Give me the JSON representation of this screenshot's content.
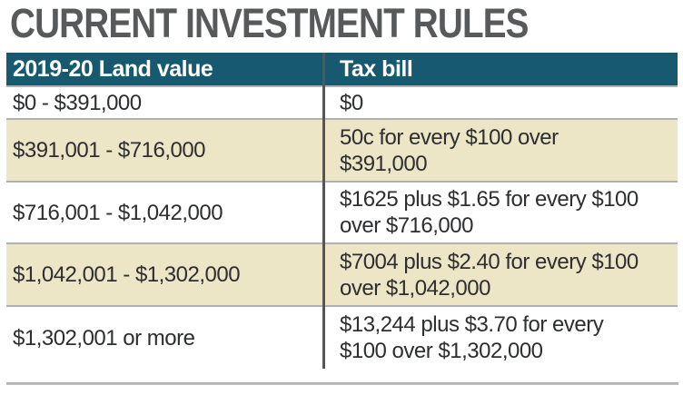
{
  "title": "CURRENT INVESTMENT RULES",
  "table": {
    "headers": {
      "land_value": "2019-20 Land value",
      "tax_bill": "Tax bill"
    },
    "rows": [
      {
        "land_value": "$0 - $391,000",
        "tax_bill": "$0"
      },
      {
        "land_value": "$391,001 - $716,000",
        "tax_bill": "50c for every $100 over\n$391,000"
      },
      {
        "land_value": "$716,001 - $1,042,000",
        "tax_bill": "$1625 plus $1.65 for every $100\nover $716,000"
      },
      {
        "land_value": "$1,042,001 - $1,302,000",
        "tax_bill": "$7004 plus $2.40 for every $100\nover $1,042,000"
      },
      {
        "land_value": "$1,302,001 or more",
        "tax_bill": "$13,244 plus $3.70 for every\n$100 over $1,302,000"
      }
    ]
  },
  "chart_data": {
    "type": "table",
    "title": "CURRENT INVESTMENT RULES",
    "columns": [
      "2019-20 Land value",
      "Tax bill"
    ],
    "rows": [
      [
        "$0 - $391,000",
        "$0"
      ],
      [
        "$391,001 - $716,000",
        "50c for every $100 over $391,000"
      ],
      [
        "$716,001 - $1,042,000",
        "$1625 plus $1.65 for every $100 over $716,000"
      ],
      [
        "$1,042,001 - $1,302,000",
        "$7004 plus $2.40 for every $100 over $1,042,000"
      ],
      [
        "$1,302,001 or more",
        "$13,244 plus $3.70 for every $100 over $1,302,000"
      ]
    ],
    "layout": {
      "zebra_striping": true,
      "header_position": "top"
    }
  },
  "colors": {
    "header_bg": "#175A6F",
    "header_text": "#FFFFFF",
    "alt_row_bg": "#ECE5C6",
    "row_bg": "#FFFFFF",
    "title_text": "#58595B",
    "cell_text": "#2D2E30",
    "row_separator": "#AFB1B3",
    "column_divider": "#54565A",
    "bottom_rule": "#A6A8AA"
  }
}
